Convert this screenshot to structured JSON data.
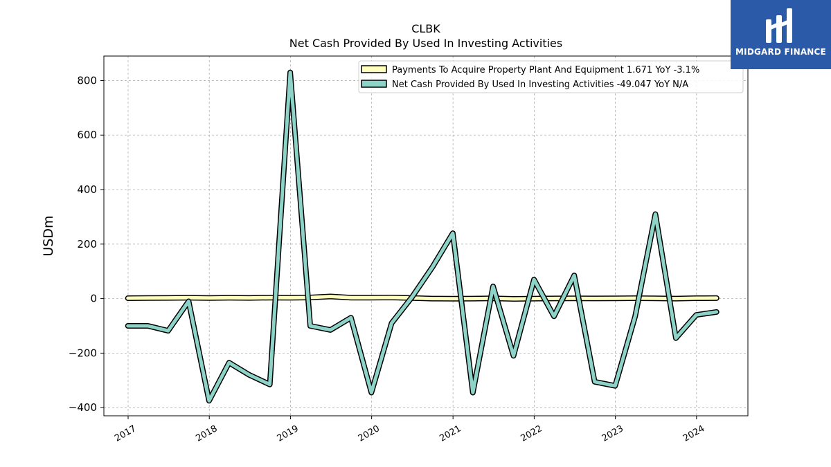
{
  "chart_data": {
    "type": "line",
    "title": "CLBK",
    "subtitle": "Net Cash Provided By Used In Investing Activities",
    "ylabel": "USDm",
    "xlabel": "",
    "ylim": [
      -430,
      890
    ],
    "yticks": [
      -400,
      -200,
      0,
      200,
      400,
      600,
      800
    ],
    "ytick_labels": [
      "−400",
      "−200",
      "0",
      "200",
      "400",
      "600",
      "800"
    ],
    "xlim": [
      "2016-09-14",
      "2024-08-19"
    ],
    "xticks": [
      "2017",
      "2018",
      "2019",
      "2020",
      "2021",
      "2022",
      "2023",
      "2024"
    ],
    "grid": true,
    "legend_position": "top-right",
    "x": [
      "2016-12-31",
      "2017-03-31",
      "2017-06-30",
      "2017-09-30",
      "2017-12-31",
      "2018-03-31",
      "2018-06-30",
      "2018-09-30",
      "2018-12-31",
      "2019-03-31",
      "2019-06-30",
      "2019-09-30",
      "2019-12-31",
      "2020-03-31",
      "2020-06-30",
      "2020-09-30",
      "2020-12-31",
      "2021-03-31",
      "2021-06-30",
      "2021-09-30",
      "2021-12-31",
      "2022-03-31",
      "2022-06-30",
      "2022-09-30",
      "2022-12-31",
      "2023-03-31",
      "2023-06-30",
      "2023-09-30",
      "2023-12-31",
      "2024-03-31"
    ],
    "series": [
      {
        "name": "Payments To Acquire Property Plant And Equipment",
        "legend_label": "Payments To Acquire Property Plant And Equipment  1.671 YoY -3.1%",
        "color": "#ffffc0",
        "values": [
          1.5,
          2,
          2.5,
          3,
          2,
          3,
          2.5,
          3.5,
          3,
          4,
          8,
          3.5,
          3.5,
          4,
          2,
          0,
          -0.5,
          0,
          1,
          -1,
          0,
          0.5,
          1,
          0.5,
          1,
          1.5,
          1,
          0,
          1.5,
          1.7
        ]
      },
      {
        "name": "Net Cash Provided By Used In Investing Activities",
        "legend_label": "Net Cash Provided By Used In Investing Activities  -49.047 YoY N/A",
        "color": "#8dd3c7",
        "values": [
          -100,
          -100,
          -118,
          -10,
          -375,
          -235,
          -280,
          -315,
          830,
          -100,
          -115,
          -70,
          -345,
          -90,
          5,
          115,
          240,
          -345,
          45,
          -210,
          70,
          -65,
          85,
          -305,
          -320,
          -65,
          310,
          -145,
          -60,
          -49
        ]
      }
    ]
  },
  "logo": {
    "text": "MIDGARD FINANCE",
    "color": "#2a5aa8"
  }
}
